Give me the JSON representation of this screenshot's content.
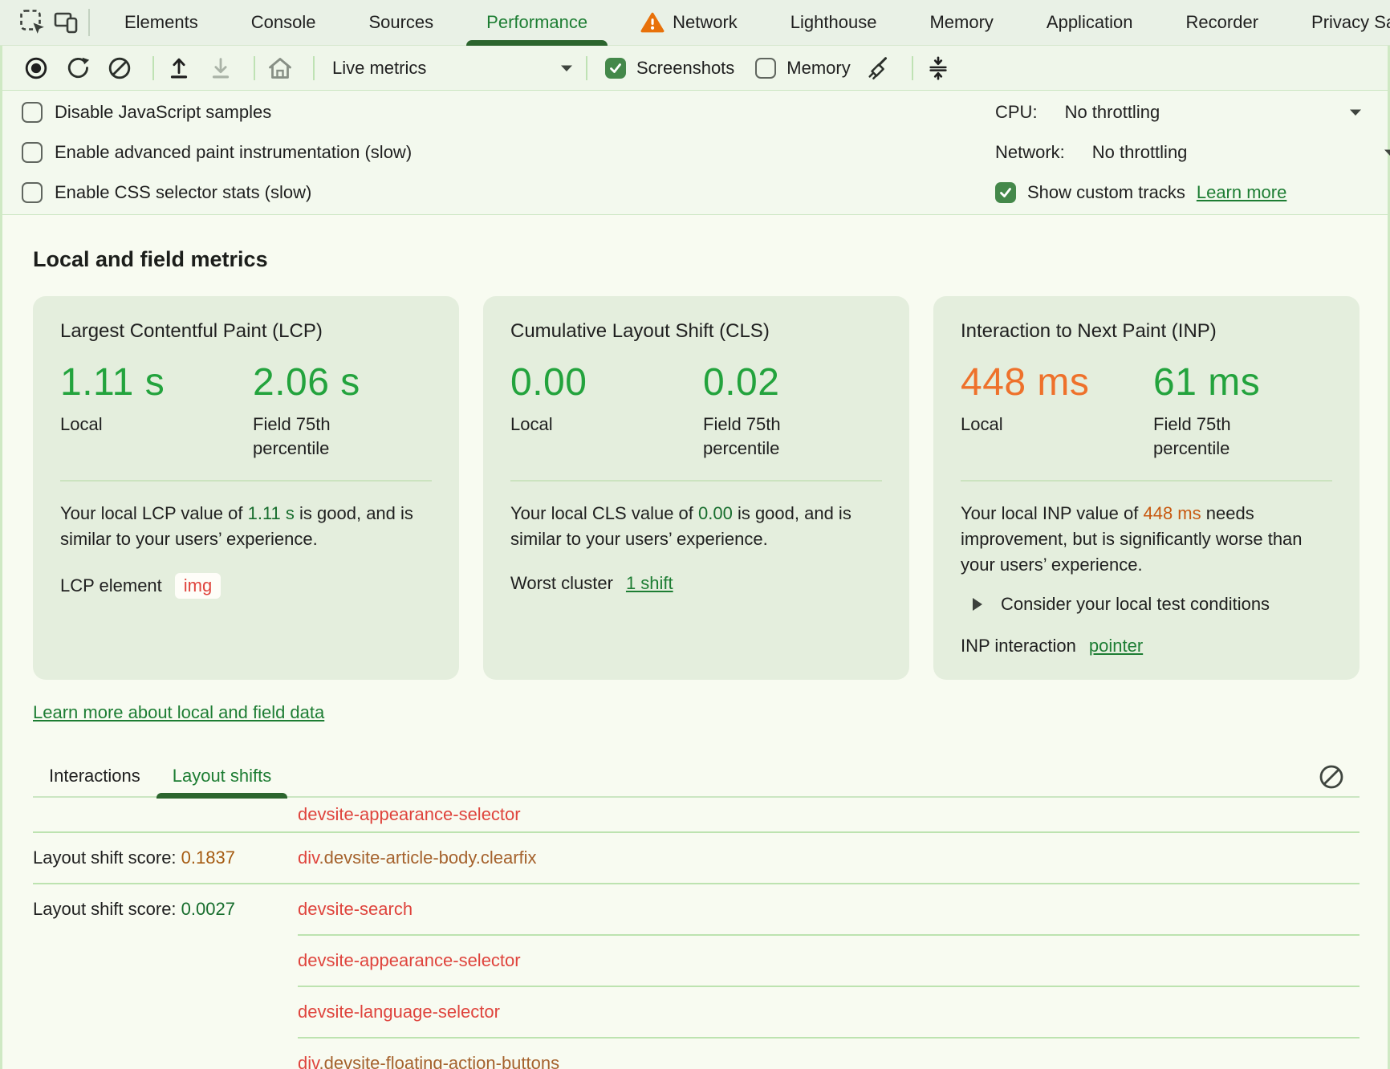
{
  "tabbar": {
    "active_tab": "Performance",
    "tabs": [
      {
        "label": "Elements"
      },
      {
        "label": "Console"
      },
      {
        "label": "Sources"
      },
      {
        "label": "Performance"
      },
      {
        "label": "Network",
        "warning": true
      },
      {
        "label": "Lighthouse"
      },
      {
        "label": "Memory"
      },
      {
        "label": "Application"
      },
      {
        "label": "Recorder"
      },
      {
        "label": "Privacy Sand"
      }
    ]
  },
  "toolbar": {
    "dropdown_value": "Live metrics",
    "screenshots_label": "Screenshots",
    "memory_label": "Memory"
  },
  "settings": {
    "checkboxes": [
      {
        "label": "Disable JavaScript samples"
      },
      {
        "label": "Enable advanced paint instrumentation (slow)"
      },
      {
        "label": "Enable CSS selector stats (slow)"
      }
    ],
    "cpu_label": "CPU:",
    "cpu_value": "No throttling",
    "network_label": "Network:",
    "network_value": "No throttling",
    "custom_tracks_label": "Show custom tracks",
    "learn_more_label": "Learn more"
  },
  "metrics": {
    "heading": "Local and field metrics",
    "learn_more_link": "Learn more about local and field data",
    "cards": [
      {
        "title": "Largest Contentful Paint (LCP)",
        "local_value": "1.11 s",
        "local_label": "Local",
        "field_value": "2.06 s",
        "field_label": "Field 75th percentile",
        "desc_prefix": "Your local LCP value of ",
        "desc_value": "1.11 s",
        "desc_suffix": " is good, and is similar to your users’ experience.",
        "extra_label": "LCP element",
        "extra_badge": "img"
      },
      {
        "title": "Cumulative Layout Shift (CLS)",
        "local_value": "0.00",
        "local_label": "Local",
        "field_value": "0.02",
        "field_label": "Field 75th percentile",
        "desc_prefix": "Your local CLS value of ",
        "desc_value": "0.00",
        "desc_suffix": " is good, and is similar to your users’ experience.",
        "extra_label": "Worst cluster",
        "extra_link": "1 shift"
      },
      {
        "title": "Interaction to Next Paint (INP)",
        "local_value": "448 ms",
        "local_label": "Local",
        "field_value": "61 ms",
        "field_label": "Field 75th percentile",
        "desc_prefix": "Your local INP value of ",
        "desc_value": "448 ms",
        "desc_suffix": " needs improvement, but is significantly worse than your users’ experience.",
        "disclosure_label": "Consider your local test conditions",
        "extra_label": "INP interaction",
        "extra_link": "pointer"
      }
    ]
  },
  "shift_panel": {
    "tabs": [
      "Interactions",
      "Layout shifts"
    ],
    "active_tab": "Layout shifts",
    "score_prefix": "Layout shift score: ",
    "rows": [
      {
        "parts": [
          {
            "text": "devsite-appearance-selector",
            "type": "tag"
          }
        ],
        "sep": "full"
      },
      {
        "score": "0.1837",
        "status": "needs-improvement",
        "parts": [
          {
            "text": "div",
            "type": "tag"
          },
          {
            "text": ".devsite-article-body.clearfix",
            "type": "cls"
          }
        ],
        "sep": "full"
      },
      {
        "score": "0.0027",
        "status": "good",
        "parts": [
          {
            "text": "devsite-search",
            "type": "tag"
          }
        ],
        "sep": "partial"
      },
      {
        "parts": [
          {
            "text": "devsite-appearance-selector",
            "type": "tag"
          }
        ],
        "sep": "partial"
      },
      {
        "parts": [
          {
            "text": "devsite-language-selector",
            "type": "tag"
          }
        ],
        "sep": "partial"
      },
      {
        "parts": [
          {
            "text": "div",
            "type": "tag"
          },
          {
            "text": ".devsite-floating-action-buttons",
            "type": "cls"
          }
        ],
        "sep": "none"
      }
    ]
  },
  "colors": {
    "accent_green": "#1d7d33",
    "metric_good": "#23a33d",
    "metric_poor": "#ee712b",
    "node_red": "#df443d",
    "node_class_brown": "#a5622d",
    "warning_orange": "#e8710a"
  }
}
